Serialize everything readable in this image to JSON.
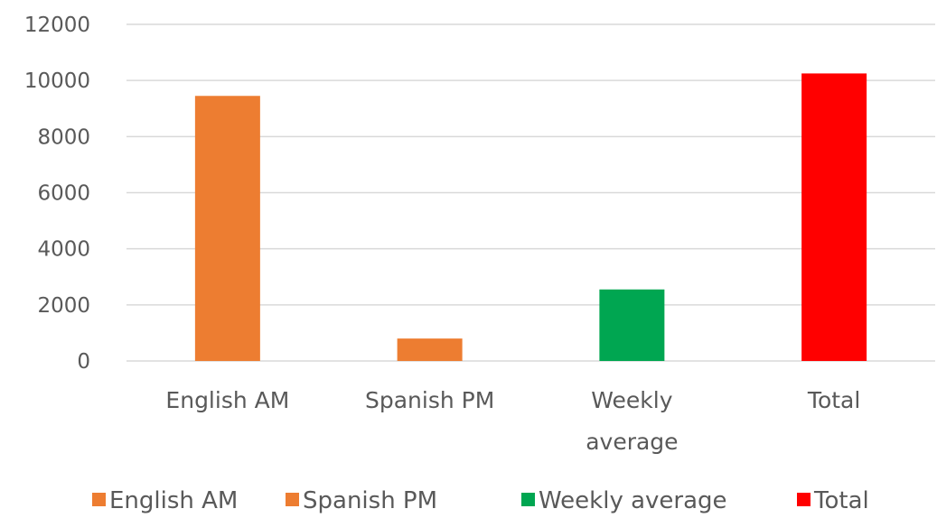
{
  "chart_data": {
    "type": "bar",
    "categories": [
      "English AM",
      "Spanish PM",
      "Weekly average",
      "Total"
    ],
    "category_lines": [
      [
        "English AM"
      ],
      [
        "Spanish PM"
      ],
      [
        "Weekly",
        "average"
      ],
      [
        "Total"
      ]
    ],
    "series": [
      {
        "name": "English AM",
        "color": "#ed7d31",
        "values": [
          9450,
          null,
          null,
          null
        ]
      },
      {
        "name": "Spanish PM",
        "color": "#ed7d31",
        "values": [
          null,
          800,
          null,
          null
        ]
      },
      {
        "name": "Weekly average",
        "color": "#00a651",
        "values": [
          null,
          null,
          2550,
          null
        ]
      },
      {
        "name": "Total",
        "color": "#ff0000",
        "values": [
          null,
          null,
          null,
          10250
        ]
      }
    ],
    "ylim": [
      0,
      12000
    ],
    "yticks": [
      0,
      2000,
      4000,
      6000,
      8000,
      10000,
      12000
    ],
    "title": "",
    "xlabel": "",
    "ylabel": "",
    "grid": true,
    "legend_position": "bottom"
  }
}
